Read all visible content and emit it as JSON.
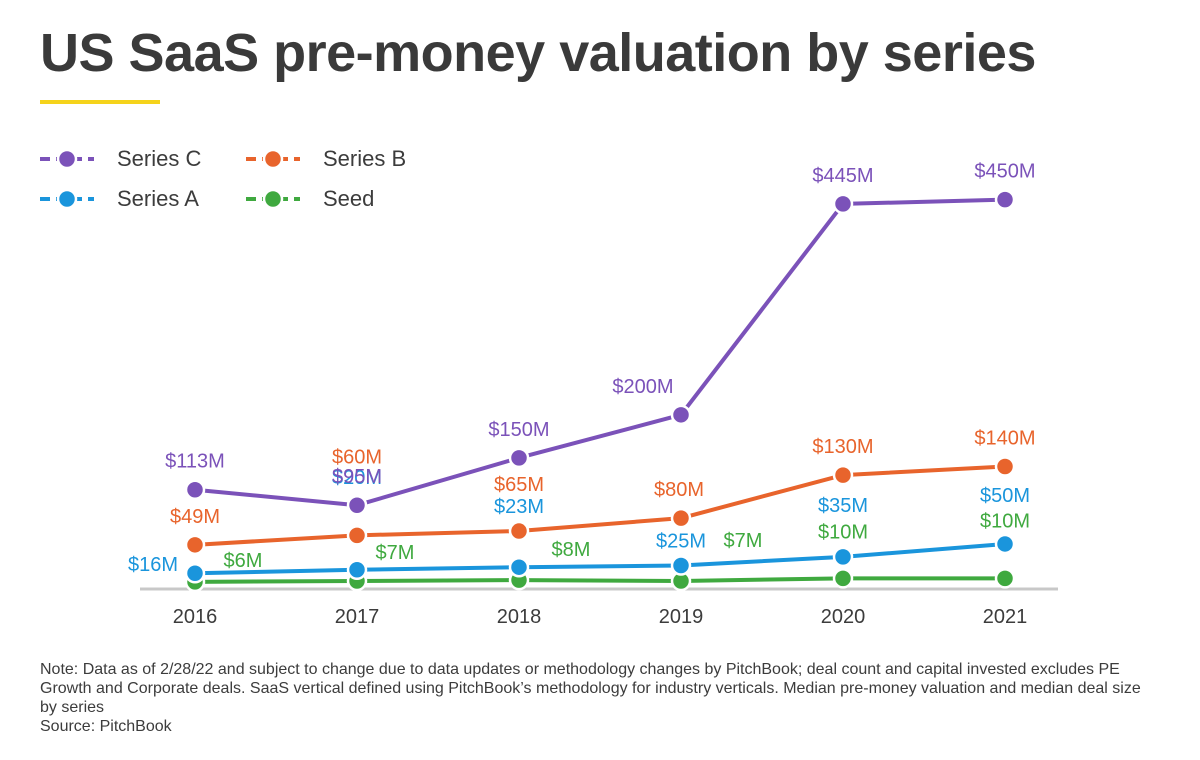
{
  "title": "US SaaS pre-money valuation by series",
  "note": "Note: Data as of 2/28/22 and subject to change due to data updates or methodology changes by PitchBook; deal count and capital invested excludes PE Growth and Corporate deals. SaaS vertical defined using PitchBook’s methodology for industry verticals. Median pre-money valuation and median deal size by series",
  "source": "Source: PitchBook",
  "colors": {
    "series_c": "#7b52b9",
    "series_b": "#e8642c",
    "series_a": "#1a95dc",
    "seed": "#3fa93f",
    "accent": "#f5d31b",
    "axis": "#c8c8c8"
  },
  "chart_data": {
    "type": "line",
    "title": "US SaaS pre-money valuation by series",
    "x": [
      "2016",
      "2017",
      "2018",
      "2019",
      "2020",
      "2021"
    ],
    "xlabel": "",
    "ylabel": "",
    "ylim": [
      0,
      460
    ],
    "grid": false,
    "legend": "top-left",
    "series": [
      {
        "name": "Series C",
        "color": "#7b52b9",
        "values": [
          113,
          95,
          150,
          200,
          445,
          450
        ],
        "labels": [
          "$113M",
          "$95M",
          "$150M",
          "$200M",
          "$445M",
          "$450M"
        ]
      },
      {
        "name": "Series B",
        "color": "#e8642c",
        "values": [
          49,
          60,
          65,
          80,
          130,
          140
        ],
        "labels": [
          "$49M",
          "$60M",
          "$65M",
          "$80M",
          "$130M",
          "$140M"
        ]
      },
      {
        "name": "Series A",
        "color": "#1a95dc",
        "values": [
          16,
          20,
          23,
          25,
          35,
          50
        ],
        "labels": [
          "$16M",
          "$20M",
          "$23M",
          "$25M",
          "$35M",
          "$50M"
        ]
      },
      {
        "name": "Seed",
        "color": "#3fa93f",
        "values": [
          6,
          7,
          8,
          7,
          10,
          10
        ],
        "labels": [
          "$6M",
          "$7M",
          "$8M",
          "$7M",
          "$10M",
          "$10M"
        ]
      }
    ]
  }
}
